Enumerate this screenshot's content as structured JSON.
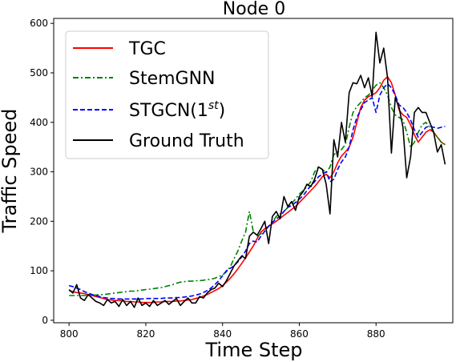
{
  "chart_data": {
    "type": "line",
    "title": "Node 0",
    "xlabel": "Time Step",
    "ylabel": "Traffic Speed",
    "xlim": [
      796,
      900
    ],
    "ylim": [
      -5,
      610
    ],
    "xticks": [
      800,
      820,
      840,
      860,
      880
    ],
    "yticks": [
      0,
      100,
      200,
      300,
      400,
      500,
      600
    ],
    "grid": false,
    "legend_position": "upper-left",
    "series": [
      {
        "name": "TGC",
        "color": "#ff0000",
        "style": "solid",
        "x": [
          800,
          801,
          802,
          803,
          804,
          805,
          806,
          807,
          808,
          809,
          810,
          811,
          812,
          813,
          814,
          815,
          816,
          817,
          818,
          819,
          820,
          821,
          822,
          823,
          824,
          825,
          826,
          827,
          828,
          829,
          830,
          831,
          832,
          833,
          834,
          835,
          836,
          837,
          838,
          839,
          840,
          841,
          842,
          843,
          844,
          845,
          846,
          847,
          848,
          849,
          850,
          851,
          852,
          853,
          854,
          855,
          856,
          857,
          858,
          859,
          860,
          861,
          862,
          863,
          864,
          865,
          866,
          867,
          868,
          869,
          870,
          871,
          872,
          873,
          874,
          875,
          876,
          877,
          878,
          879,
          880,
          881,
          882,
          883,
          884,
          885,
          886,
          887,
          888,
          889,
          890,
          891,
          892,
          893,
          894,
          895,
          896,
          897,
          898
        ],
        "values": [
          60,
          58,
          56,
          55,
          54,
          52,
          50,
          48,
          46,
          44,
          42,
          41,
          40,
          40,
          39,
          38,
          38,
          37,
          37,
          36,
          36,
          36,
          36,
          37,
          37,
          38,
          38,
          38,
          39,
          39,
          40,
          41,
          42,
          44,
          46,
          49,
          52,
          56,
          60,
          64,
          70,
          77,
          85,
          94,
          104,
          115,
          126,
          138,
          150,
          165,
          178,
          185,
          190,
          195,
          200,
          206,
          212,
          218,
          224,
          230,
          238,
          246,
          254,
          262,
          270,
          280,
          290,
          295,
          288,
          300,
          318,
          332,
          340,
          350,
          370,
          400,
          430,
          445,
          452,
          455,
          460,
          470,
          485,
          492,
          480,
          455,
          425,
          415,
          410,
          395,
          375,
          360,
          370,
          380,
          385,
          380,
          370,
          360,
          355
        ]
      },
      {
        "name": "StemGNN",
        "color": "#008000",
        "style": "dashdot",
        "x": [
          800,
          801,
          802,
          803,
          804,
          805,
          806,
          807,
          808,
          809,
          810,
          811,
          812,
          813,
          814,
          815,
          816,
          817,
          818,
          819,
          820,
          821,
          822,
          823,
          824,
          825,
          826,
          827,
          828,
          829,
          830,
          831,
          832,
          833,
          834,
          835,
          836,
          837,
          838,
          839,
          840,
          841,
          842,
          843,
          844,
          845,
          846,
          847,
          848,
          849,
          850,
          851,
          852,
          853,
          854,
          855,
          856,
          857,
          858,
          859,
          860,
          861,
          862,
          863,
          864,
          865,
          866,
          867,
          868,
          869,
          870,
          871,
          872,
          873,
          874,
          875,
          876,
          877,
          878,
          879,
          880,
          881,
          882,
          883,
          884,
          885,
          886,
          887,
          888,
          889,
          890,
          891,
          892,
          893,
          894,
          895,
          896,
          897,
          898
        ],
        "values": [
          50,
          50,
          50,
          50,
          50,
          51,
          51,
          51,
          52,
          52,
          53,
          54,
          55,
          56,
          57,
          58,
          59,
          59,
          60,
          61,
          62,
          63,
          64,
          65,
          66,
          68,
          70,
          72,
          75,
          77,
          78,
          79,
          79,
          80,
          80,
          81,
          82,
          83,
          85,
          88,
          92,
          98,
          108,
          125,
          140,
          160,
          178,
          220,
          180,
          170,
          175,
          180,
          190,
          198,
          210,
          215,
          220,
          228,
          236,
          245,
          255,
          262,
          270,
          280,
          300,
          310,
          305,
          298,
          310,
          335,
          340,
          345,
          355,
          390,
          420,
          432,
          440,
          450,
          455,
          465,
          475,
          480,
          470,
          455,
          430,
          415,
          410,
          405,
          380,
          350,
          360,
          380,
          395,
          400,
          390,
          380,
          370,
          360,
          355
        ]
      },
      {
        "name": "STGCN(1$^{st}$)",
        "color": "#0000ff",
        "style": "dashed",
        "x": [
          800,
          801,
          802,
          803,
          804,
          805,
          806,
          807,
          808,
          809,
          810,
          811,
          812,
          813,
          814,
          815,
          816,
          817,
          818,
          819,
          820,
          821,
          822,
          823,
          824,
          825,
          826,
          827,
          828,
          829,
          830,
          831,
          832,
          833,
          834,
          835,
          836,
          837,
          838,
          839,
          840,
          841,
          842,
          843,
          844,
          845,
          846,
          847,
          848,
          849,
          850,
          851,
          852,
          853,
          854,
          855,
          856,
          857,
          858,
          859,
          860,
          861,
          862,
          863,
          864,
          865,
          866,
          867,
          868,
          869,
          870,
          871,
          872,
          873,
          874,
          875,
          876,
          877,
          878,
          879,
          880,
          881,
          882,
          883,
          884,
          885,
          886,
          887,
          888,
          889,
          890,
          891,
          892,
          893,
          894,
          895,
          896,
          897,
          898
        ],
        "values": [
          70,
          68,
          65,
          62,
          58,
          55,
          52,
          50,
          48,
          46,
          45,
          44,
          44,
          43,
          43,
          43,
          43,
          43,
          43,
          43,
          44,
          44,
          44,
          44,
          44,
          45,
          45,
          45,
          46,
          46,
          47,
          48,
          49,
          51,
          53,
          56,
          60,
          65,
          72,
          80,
          90,
          100,
          105,
          110,
          118,
          128,
          140,
          155,
          160,
          158,
          170,
          180,
          190,
          198,
          205,
          210,
          220,
          228,
          232,
          238,
          245,
          252,
          262,
          272,
          280,
          290,
          295,
          300,
          280,
          285,
          305,
          320,
          330,
          350,
          385,
          410,
          425,
          440,
          445,
          450,
          420,
          455,
          470,
          478,
          470,
          455,
          435,
          430,
          420,
          405,
          385,
          370,
          380,
          390,
          392,
          390,
          388,
          390,
          392
        ]
      },
      {
        "name": "Ground Truth",
        "color": "#000000",
        "style": "solid",
        "x": [
          800,
          801,
          802,
          803,
          804,
          805,
          806,
          807,
          808,
          809,
          810,
          811,
          812,
          813,
          814,
          815,
          816,
          817,
          818,
          819,
          820,
          821,
          822,
          823,
          824,
          825,
          826,
          827,
          828,
          829,
          830,
          831,
          832,
          833,
          834,
          835,
          836,
          837,
          838,
          839,
          840,
          841,
          842,
          843,
          844,
          845,
          846,
          847,
          848,
          849,
          850,
          851,
          852,
          853,
          854,
          855,
          856,
          857,
          858,
          859,
          860,
          861,
          862,
          863,
          864,
          865,
          866,
          867,
          868,
          869,
          870,
          871,
          872,
          873,
          874,
          875,
          876,
          877,
          878,
          879,
          880,
          881,
          882,
          883,
          884,
          885,
          886,
          887,
          888,
          889,
          890,
          891,
          892,
          893,
          894,
          895,
          896,
          897,
          898
        ],
        "values": [
          62,
          55,
          72,
          45,
          40,
          52,
          45,
          38,
          35,
          30,
          42,
          35,
          38,
          28,
          42,
          30,
          38,
          26,
          45,
          30,
          35,
          28,
          40,
          30,
          35,
          40,
          32,
          38,
          44,
          30,
          38,
          45,
          35,
          35,
          48,
          45,
          55,
          62,
          65,
          75,
          68,
          80,
          95,
          110,
          120,
          130,
          125,
          170,
          178,
          172,
          185,
          200,
          155,
          210,
          220,
          205,
          250,
          230,
          240,
          222,
          250,
          260,
          275,
          270,
          285,
          310,
          305,
          275,
          215,
          365,
          330,
          400,
          360,
          460,
          480,
          478,
          495,
          470,
          490,
          452,
          582,
          520,
          550,
          490,
          338,
          450,
          430,
          390,
          288,
          330,
          420,
          430,
          420,
          420,
          400,
          380,
          340,
          355,
          315
        ]
      }
    ]
  }
}
